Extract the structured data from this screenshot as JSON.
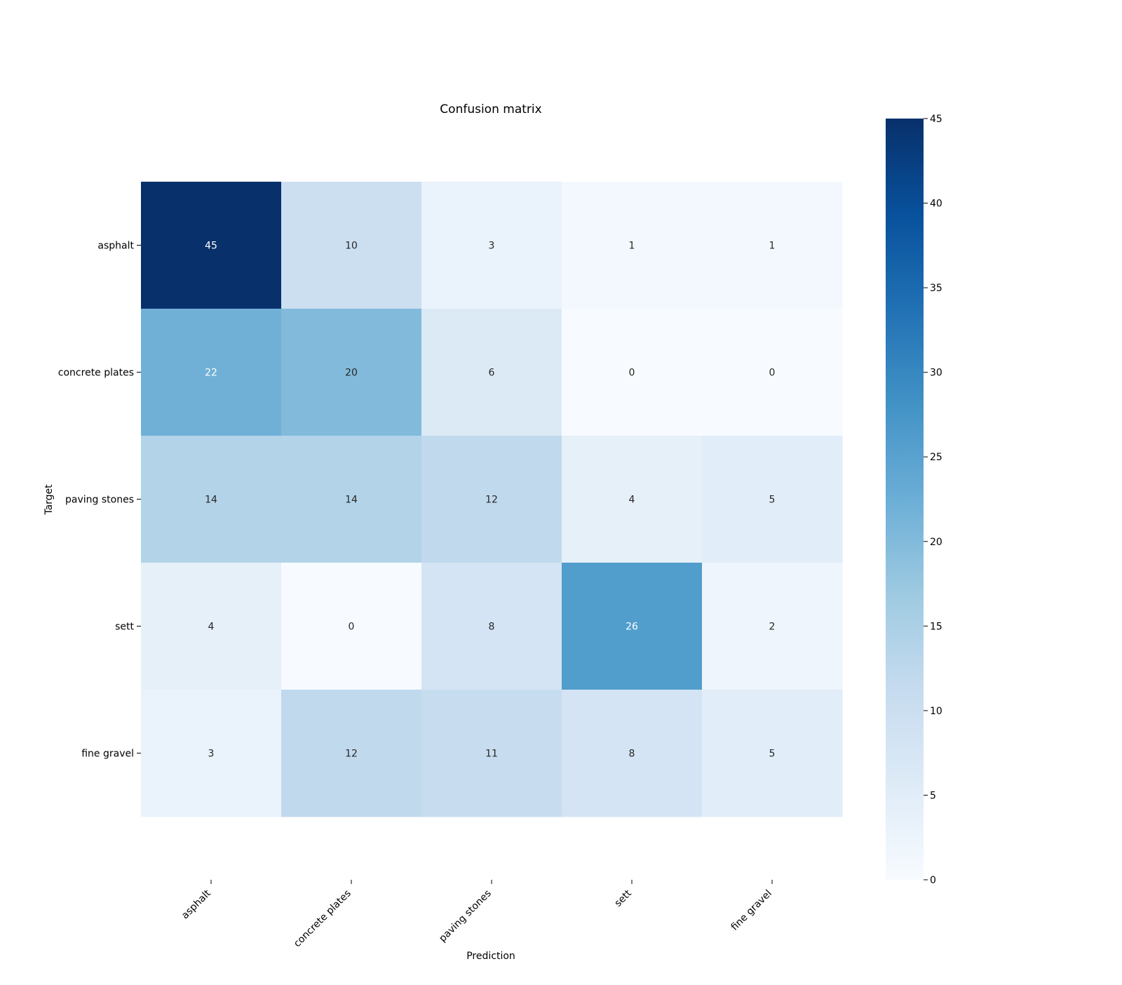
{
  "chart_data": {
    "type": "heatmap",
    "title": "Confusion matrix",
    "xlabel": "Prediction",
    "ylabel": "Target",
    "x_categories": [
      "asphalt",
      "concrete plates",
      "paving stones",
      "sett",
      "fine gravel"
    ],
    "y_categories": [
      "asphalt",
      "concrete plates",
      "paving stones",
      "sett",
      "fine gravel"
    ],
    "values": [
      [
        45,
        10,
        3,
        1,
        1
      ],
      [
        22,
        20,
        6,
        0,
        0
      ],
      [
        14,
        14,
        12,
        4,
        5
      ],
      [
        4,
        0,
        8,
        26,
        2
      ],
      [
        3,
        12,
        11,
        8,
        5
      ]
    ],
    "colorbar": {
      "range": [
        0,
        45
      ],
      "ticks": [
        0,
        5,
        10,
        15,
        20,
        25,
        30,
        35,
        40,
        45
      ],
      "colormap": "Blues"
    },
    "annotations": true,
    "grid": false,
    "legend": "colorbar-right"
  }
}
